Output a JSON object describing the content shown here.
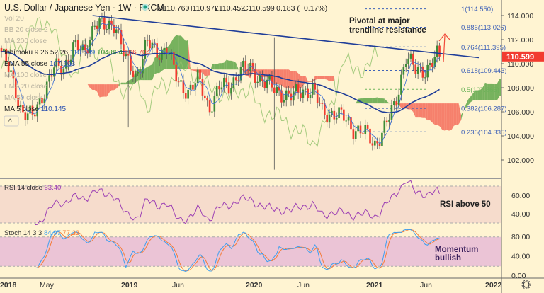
{
  "header": {
    "title": "U.S. Dollar / Japanese Yen · 1W · FXCM",
    "open": "O110.760",
    "high": "H110.977",
    "low": "L110.452",
    "close": "C110.599",
    "change": "−0.183 (−0.17%)"
  },
  "legend": {
    "vol": "Vol 20",
    "bb": "BB 20 close 2",
    "ma200": "MA 200 close",
    "ichimoku": "Ichimoku 9 26 52 26",
    "ichi_v1": "110.599",
    "ichi_v2": "104.804",
    "ichi_v3": "106.704",
    "ema55": "EMA 55 close",
    "ema55_v": "107.603",
    "ma100": "MA 100 close",
    "ema20": "EMA 20 close",
    "ma50": "MA 50 close",
    "ma5": "MA 5 close",
    "ma5_v": "110.145"
  },
  "annotations": {
    "pivot1": "Pivotal at major",
    "pivot2": "trendline resistance",
    "rsi": "RSI above 50",
    "mom1": "Momentum",
    "mom2": "bullish"
  },
  "fib": [
    {
      "label": "1(114.550)",
      "price": 114.55
    },
    {
      "label": "0.886(113.026)",
      "price": 113.026
    },
    {
      "label": "0.764(111.395)",
      "price": 111.395
    },
    {
      "label": "0.618(109.443)",
      "price": 109.443
    },
    {
      "label": "0.5(107.865)",
      "price": 107.865
    },
    {
      "label": "0.382(106.287)",
      "price": 106.287
    },
    {
      "label": "0.236(104.335)",
      "price": 104.335
    }
  ],
  "price_tag": "110.599",
  "rsi_legend": {
    "name": "RSI 14 close",
    "value": "63.40"
  },
  "stoch_legend": {
    "name": "Stoch 14 3 3",
    "k": "84.97",
    "d": "77.22"
  },
  "colors": {
    "up": "#3d8b37",
    "down": "#f23b2f",
    "ema": "#1f3d99",
    "lag": "#8fc06a",
    "cloud_up": "#5fa64a",
    "cloud_dn": "#f46b5a",
    "rsi": "#9c3fb4",
    "k": "#3d9ff0",
    "d": "#f57c3a"
  },
  "chart_data": {
    "type": "candlestick",
    "symbol": "USDJPY",
    "interval": "1W",
    "monthly_closes": {
      "start": "2018-01",
      "values": [
        111,
        108.8,
        106,
        105.5,
        107.5,
        109.5,
        109.7,
        111.5,
        110.8,
        113.5,
        112.9,
        113.5,
        110.2,
        108.9,
        111.8,
        110.8,
        111.5,
        108.3,
        107.8,
        108.7,
        106.3,
        108,
        108.1,
        109.5,
        109.5,
        108.8,
        108,
        107.6,
        107.2,
        107.8,
        107.9,
        105.9,
        105.9,
        105.5,
        104.6,
        104.3,
        103.3,
        104.7,
        106.6,
        110.7,
        109.3,
        109.6,
        110.6
      ]
    },
    "spikes": [
      {
        "week": 53,
        "low": 104.7
      },
      {
        "week": 114,
        "low": 101.2,
        "high": 112.2
      }
    ],
    "price_axis": {
      "ticks": [
        "102.000",
        "104.000",
        "106.000",
        "108.000",
        "110.000",
        "112.000",
        "114.000"
      ],
      "range": [
        101,
        115
      ]
    },
    "time_axis": [
      "2018",
      "May",
      "2019",
      "Jun",
      "2020",
      "Jun",
      "2021",
      "Jun",
      "2022"
    ],
    "rsi_axis": [
      "40.00",
      "60.00"
    ],
    "stoch_axis": [
      "0.00",
      "40.00",
      "80.00"
    ],
    "trendline": {
      "from": {
        "week": 44,
        "price": 114.0
      },
      "to": {
        "week": 200,
        "price": 110.5
      }
    }
  }
}
